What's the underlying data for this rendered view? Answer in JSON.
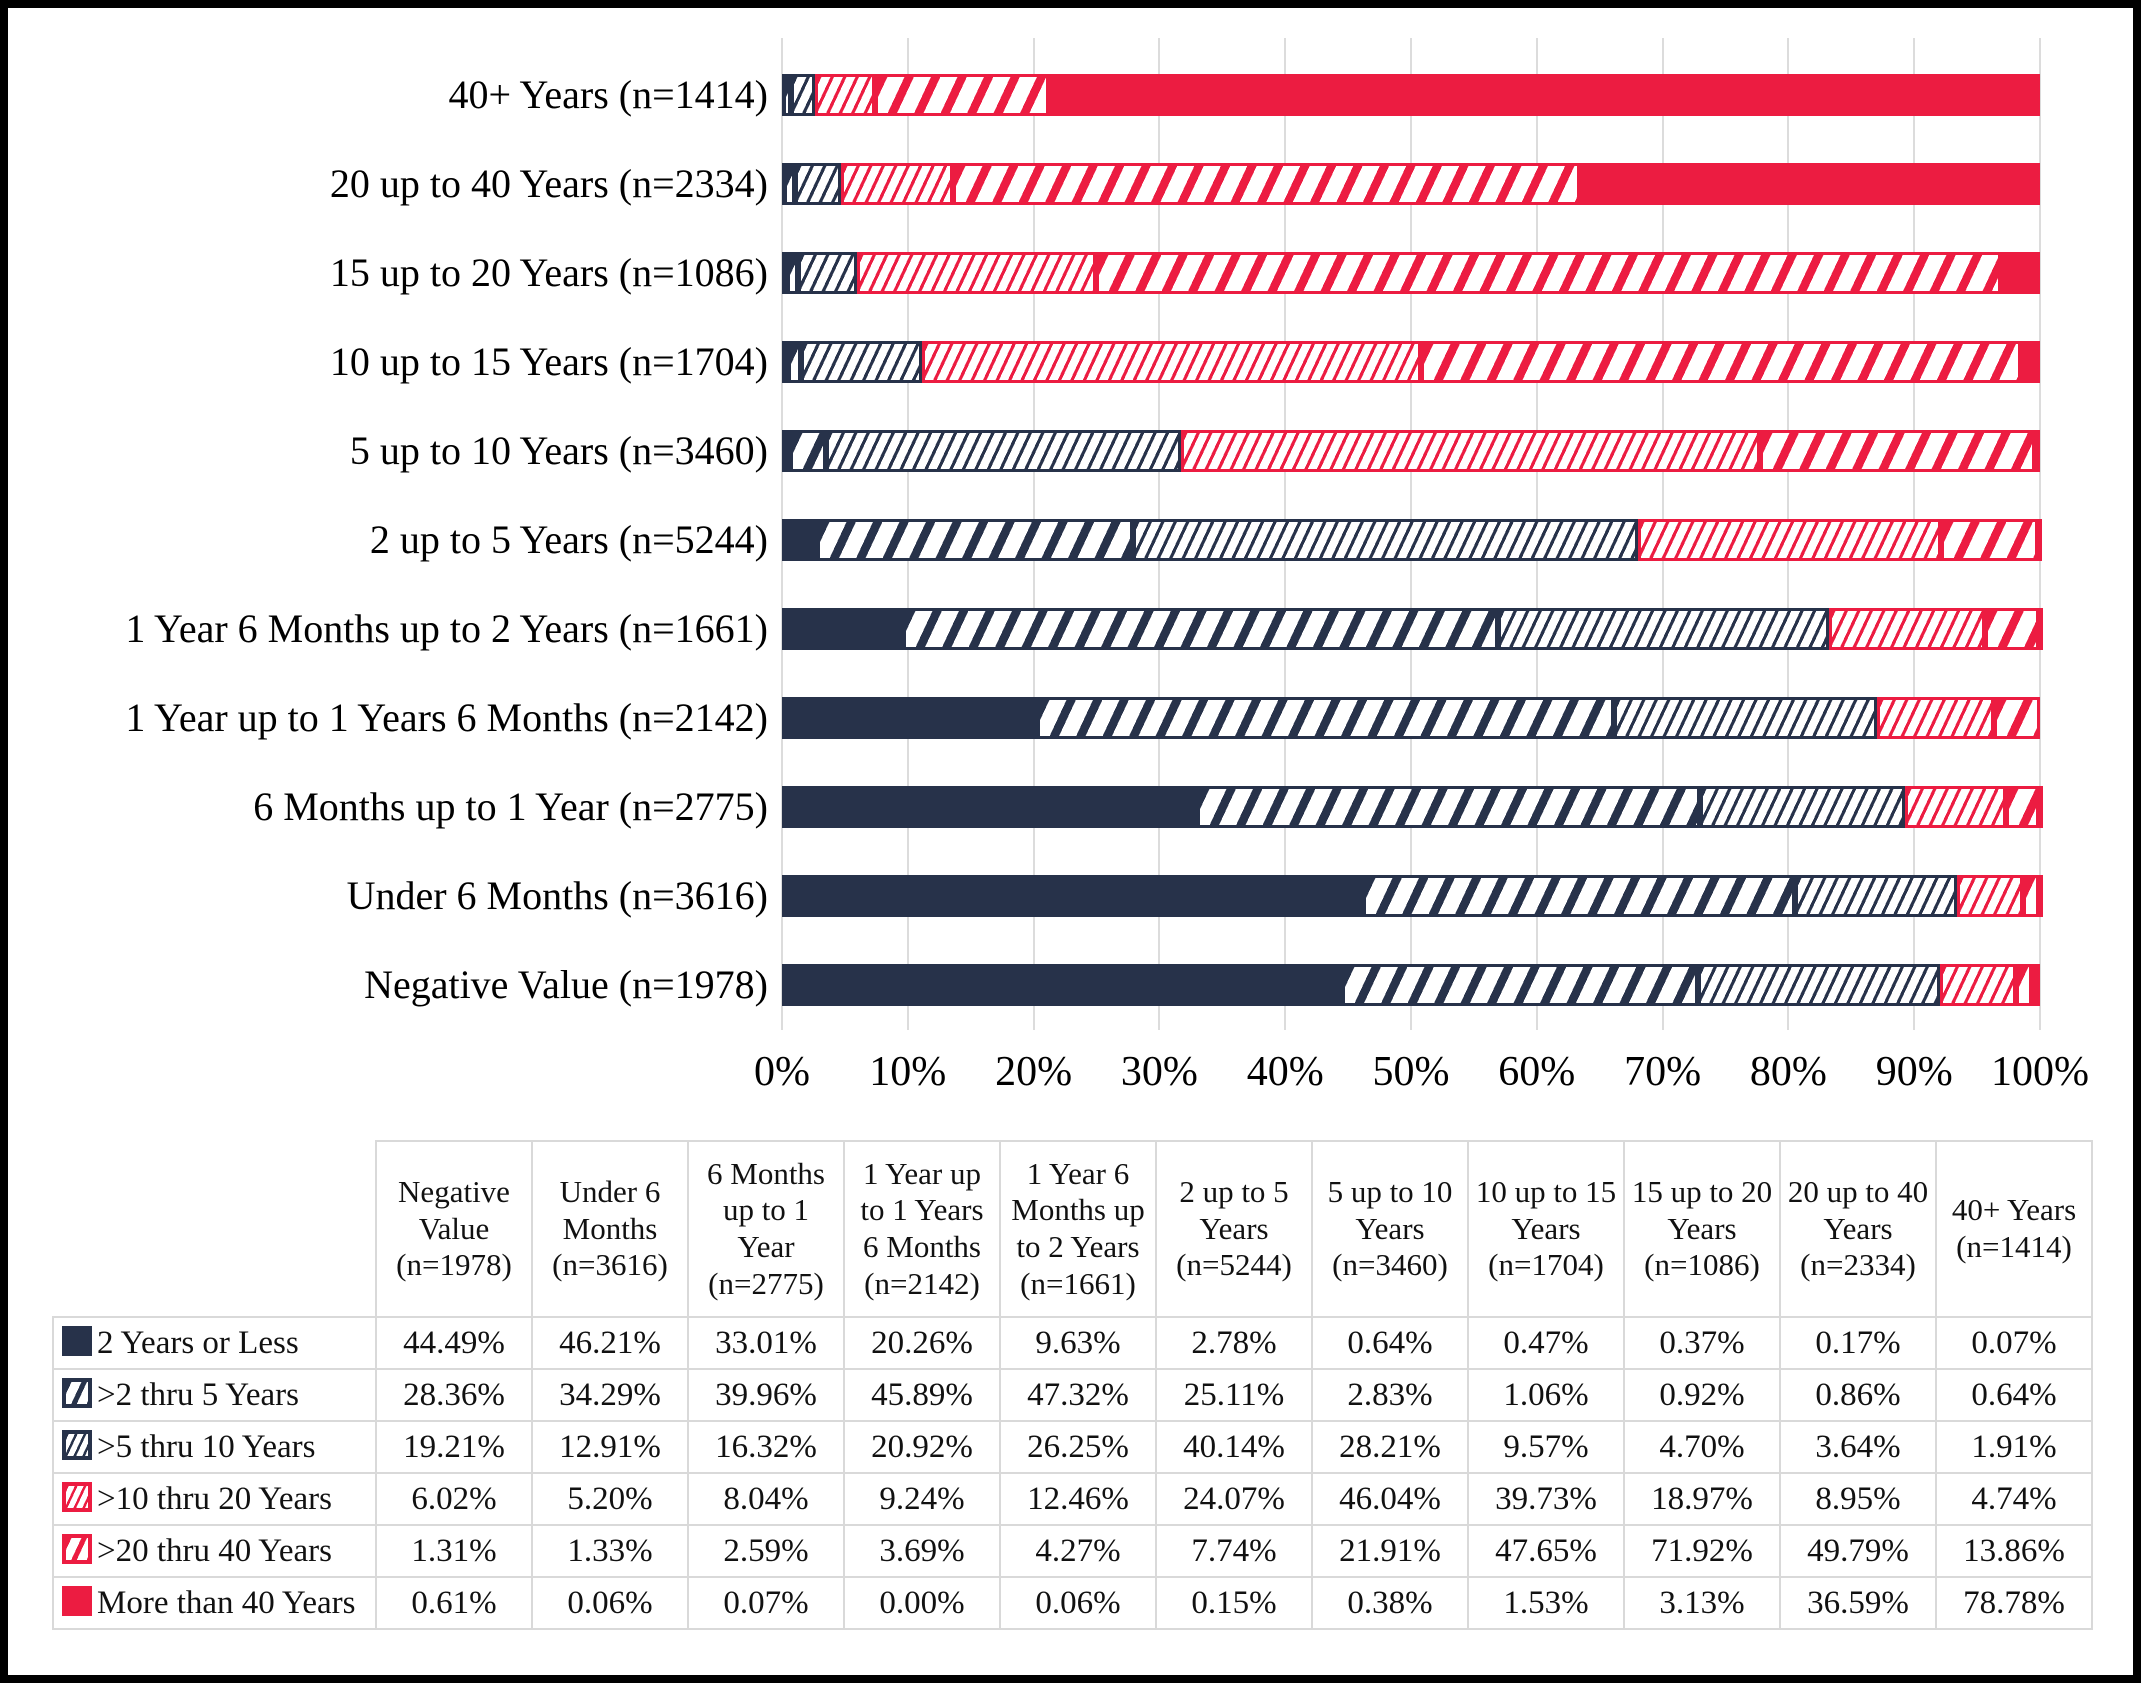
{
  "chart_data": {
    "type": "bar",
    "variant": "stacked-horizontal-100pct",
    "grid": true,
    "legend_position": "table-left-column",
    "colors": {
      "navy": "#27324a",
      "red": "#ec1c41",
      "gridline": "#dcdcdc",
      "table_border": "#d9d9d9",
      "background": "#ffffff",
      "frame": "#000000"
    },
    "x_axis": {
      "range": [
        0,
        100
      ],
      "ticks": [
        "0%",
        "10%",
        "20%",
        "30%",
        "40%",
        "50%",
        "60%",
        "70%",
        "80%",
        "90%",
        "100%"
      ]
    },
    "categories": [
      "Negative Value (n=1978)",
      "Under 6 Months (n=3616)",
      "6 Months up to 1 Year (n=2775)",
      "1 Year up to 1 Years 6 Months (n=2142)",
      "1 Year 6 Months up to 2 Years (n=1661)",
      "2 up to 5 Years (n=5244)",
      "5 up to 10 Years (n=3460)",
      "10 up to 15 Years (n=1704)",
      "15 up to 20 Years (n=1086)",
      "20 up to 40 Years (n=2334)",
      "40+ Years (n=1414)"
    ],
    "chart_row_order_top_to_bottom": [
      "40+ Years (n=1414)",
      "20 up to 40 Years (n=2334)",
      "15 up to 20 Years (n=1086)",
      "10 up to 15 Years (n=1704)",
      "5 up to 10 Years (n=3460)",
      "2 up to 5 Years (n=5244)",
      "1 Year 6 Months up to 2 Years (n=1661)",
      "1 Year up to 1 Years 6 Months (n=2142)",
      "6 Months up to 1 Year (n=2775)",
      "Under 6 Months (n=3616)",
      "Negative Value (n=1978)"
    ],
    "series": [
      {
        "name": "2 Years or Less",
        "style": "navy-solid",
        "values": [
          44.49,
          46.21,
          33.01,
          20.26,
          9.63,
          2.78,
          0.64,
          0.47,
          0.37,
          0.17,
          0.07
        ]
      },
      {
        "name": ">2 thru 5 Years",
        "style": "navy-thick-stripes",
        "values": [
          28.36,
          34.29,
          39.96,
          45.89,
          47.32,
          25.11,
          2.83,
          1.06,
          0.92,
          0.86,
          0.64
        ]
      },
      {
        "name": ">5 thru 10 Years",
        "style": "navy-thin-stripes",
        "values": [
          19.21,
          12.91,
          16.32,
          20.92,
          26.25,
          40.14,
          28.21,
          9.57,
          4.7,
          3.64,
          1.91
        ]
      },
      {
        "name": ">10 thru 20 Years",
        "style": "red-thin-stripes",
        "values": [
          6.02,
          5.2,
          8.04,
          9.24,
          12.46,
          24.07,
          46.04,
          39.73,
          18.97,
          8.95,
          4.74
        ]
      },
      {
        "name": ">20 thru 40 Years",
        "style": "red-thick-stripes",
        "values": [
          1.31,
          1.33,
          2.59,
          3.69,
          4.27,
          7.74,
          21.91,
          47.65,
          71.92,
          49.79,
          13.86
        ]
      },
      {
        "name": "More than 40 Years",
        "style": "red-solid",
        "values": [
          0.61,
          0.06,
          0.07,
          0.0,
          0.06,
          0.15,
          0.38,
          1.53,
          3.13,
          36.59,
          78.78
        ]
      }
    ]
  },
  "table": {
    "corner_label": "",
    "column_headers": [
      "Negative Value (n=1978)",
      "Under 6 Months (n=3616)",
      "6 Months up to 1 Year (n=2775)",
      "1 Year up to 1 Years 6 Months (n=2142)",
      "1 Year 6 Months up to 2 Years (n=1661)",
      "2 up to 5 Years (n=5244)",
      "5 up to 10 Years (n=3460)",
      "10 up to 15 Years (n=1704)",
      "15 up to 20 Years (n=1086)",
      "20 up to 40 Years (n=2334)",
      "40+ Years (n=1414)"
    ],
    "value_suffix": "%"
  }
}
